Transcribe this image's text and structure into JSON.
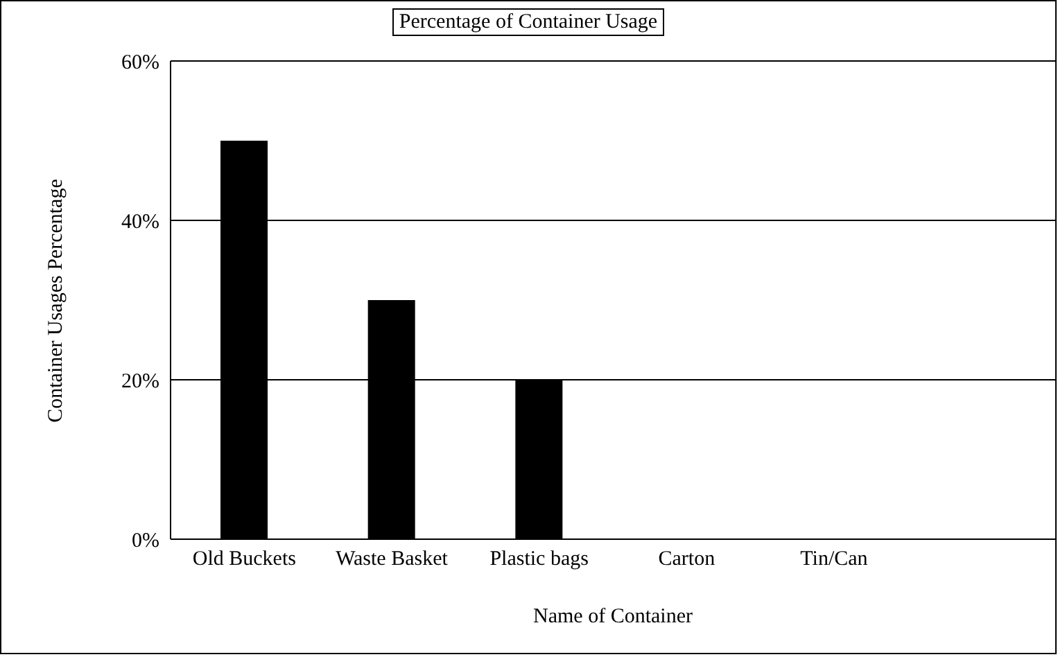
{
  "chart_data": {
    "type": "bar",
    "title": "Percentage of Container Usage",
    "xlabel": "Name of Container",
    "ylabel": "Container Usages Percentage",
    "categories": [
      "Old Buckets",
      "Waste Basket",
      "Plastic bags",
      "Carton",
      "Tin/Can",
      null
    ],
    "values": [
      50,
      30,
      20,
      0,
      0,
      null
    ],
    "color": "#000000",
    "ylim": [
      0,
      60
    ],
    "yticks": [
      {
        "value": 0,
        "label": "0%"
      },
      {
        "value": 20,
        "label": "20%"
      },
      {
        "value": 40,
        "label": "40%"
      },
      {
        "value": 60,
        "label": "60%"
      }
    ],
    "grid": "y",
    "legend": false
  }
}
